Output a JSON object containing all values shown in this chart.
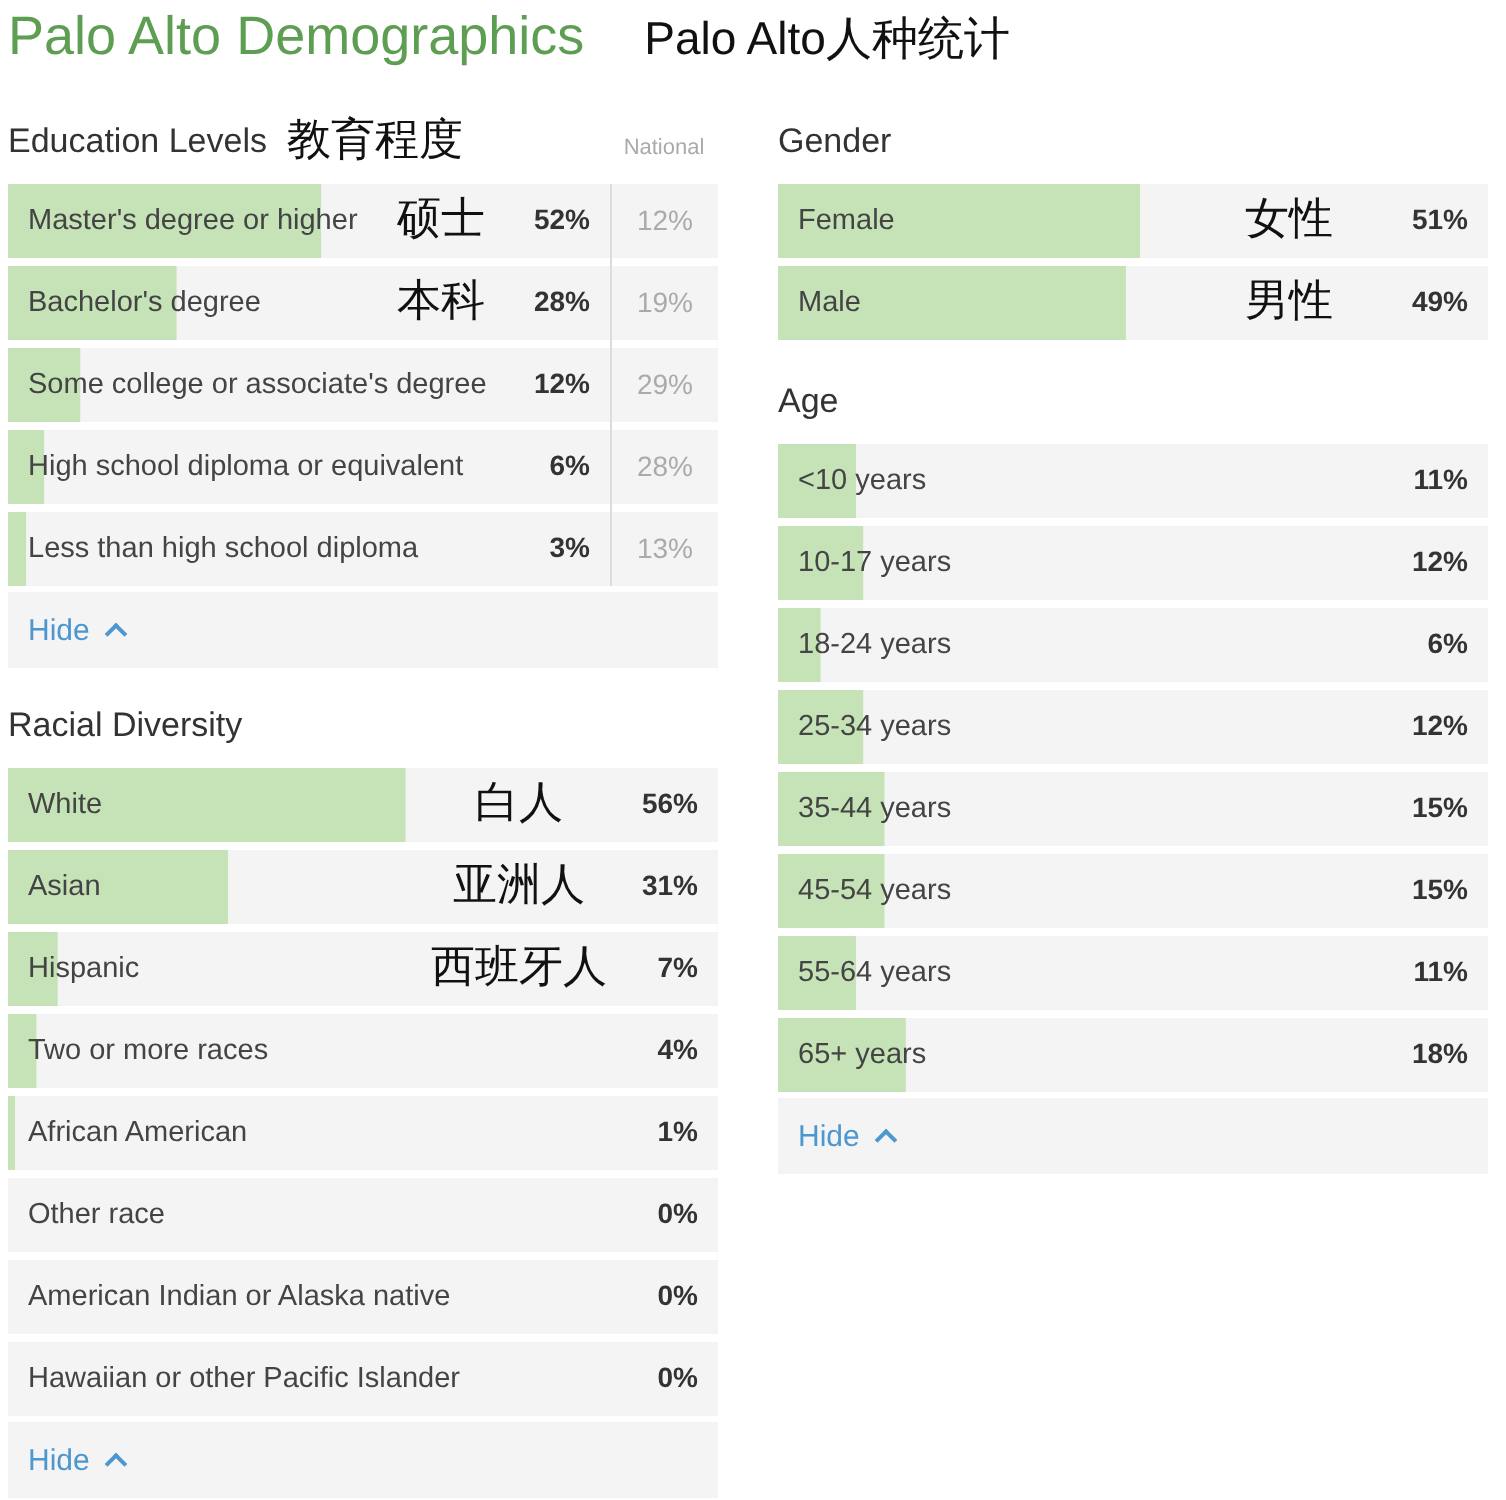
{
  "chart_data": [
    {
      "type": "bar",
      "orientation": "horizontal",
      "title": "Education Levels",
      "subtitle": "教育程度",
      "categories": [
        "Master's degree or higher",
        "Bachelor's degree",
        "Some college or associate's degree",
        "High school diploma or equivalent",
        "Less than high school diploma"
      ],
      "series": [
        {
          "color": "#c5e3b6",
          "values": [
            52,
            28,
            12,
            6,
            3
          ],
          "value_labels": [
            "52%",
            "28%",
            "12%",
            "6%",
            "3%"
          ]
        }
      ],
      "xlim": [
        0,
        100
      ],
      "tick_labels": "y",
      "annotations": [
        "Palo Alto Demographics",
        "Palo Alto人种统计",
        "硕士",
        "本科",
        "Hide"
      ]
    },
    {
      "type": "other",
      "title": "National",
      "color": "#aaaaaa",
      "values": [
        12,
        19,
        29,
        28,
        13
      ],
      "value_labels": [
        "12%",
        "19%",
        "29%",
        "28%",
        "13%"
      ]
    },
    {
      "type": "bar",
      "orientation": "horizontal",
      "title": "Racial Diversity",
      "categories": [
        "White",
        "Asian",
        "Hispanic",
        "Two or more races",
        "African American",
        "Other race",
        "American Indian or Alaska native",
        "Hawaiian or other Pacific Islander"
      ],
      "series": [
        {
          "color": "#c5e3b6",
          "values": [
            56,
            31,
            7,
            4,
            1,
            0,
            0,
            0
          ],
          "value_labels": [
            "56%",
            "31%",
            "7%",
            "4%",
            "1%",
            "0%",
            "0%",
            "0%"
          ]
        }
      ],
      "xlim": [
        0,
        100
      ],
      "tick_labels": "y",
      "annotations": [
        "白人",
        "亚洲人",
        "西班牙人",
        "Hide"
      ]
    },
    {
      "type": "bar",
      "orientation": "horizontal",
      "title": "Gender",
      "categories": [
        "Female",
        "Male"
      ],
      "series": [
        {
          "color": "#c5e3b6",
          "values": [
            51,
            49
          ],
          "value_labels": [
            "51%",
            "49%"
          ]
        }
      ],
      "xlim": [
        0,
        100
      ],
      "tick_labels": "y",
      "annotations": [
        "女性",
        "男性"
      ]
    },
    {
      "type": "bar",
      "orientation": "horizontal",
      "title": "Age",
      "categories": [
        "<10 years",
        "10-17 years",
        "18-24 years",
        "25-34 years",
        "35-44 years",
        "45-54 years",
        "55-64 years",
        "65+ years"
      ],
      "series": [
        {
          "color": "#c5e3b6",
          "values": [
            11,
            12,
            6,
            12,
            15,
            15,
            11,
            18
          ],
          "value_labels": [
            "11%",
            "12%",
            "6%",
            "12%",
            "15%",
            "15%",
            "11%",
            "18%"
          ]
        }
      ],
      "xlim": [
        0,
        100
      ],
      "tick_labels": "y",
      "annotations": [
        "Hide"
      ]
    }
  ]
}
